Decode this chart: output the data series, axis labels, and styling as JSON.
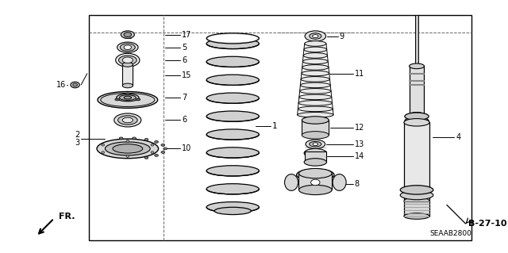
{
  "bg_color": "#ffffff",
  "line_color": "#000000",
  "gray_light": "#e8e8e8",
  "gray_mid": "#c8c8c8",
  "gray_dark": "#a0a0a0",
  "fig_width": 6.4,
  "fig_height": 3.19,
  "dpi": 100,
  "diagram_code": "SEAAB2800",
  "page_code": "B-27-10"
}
